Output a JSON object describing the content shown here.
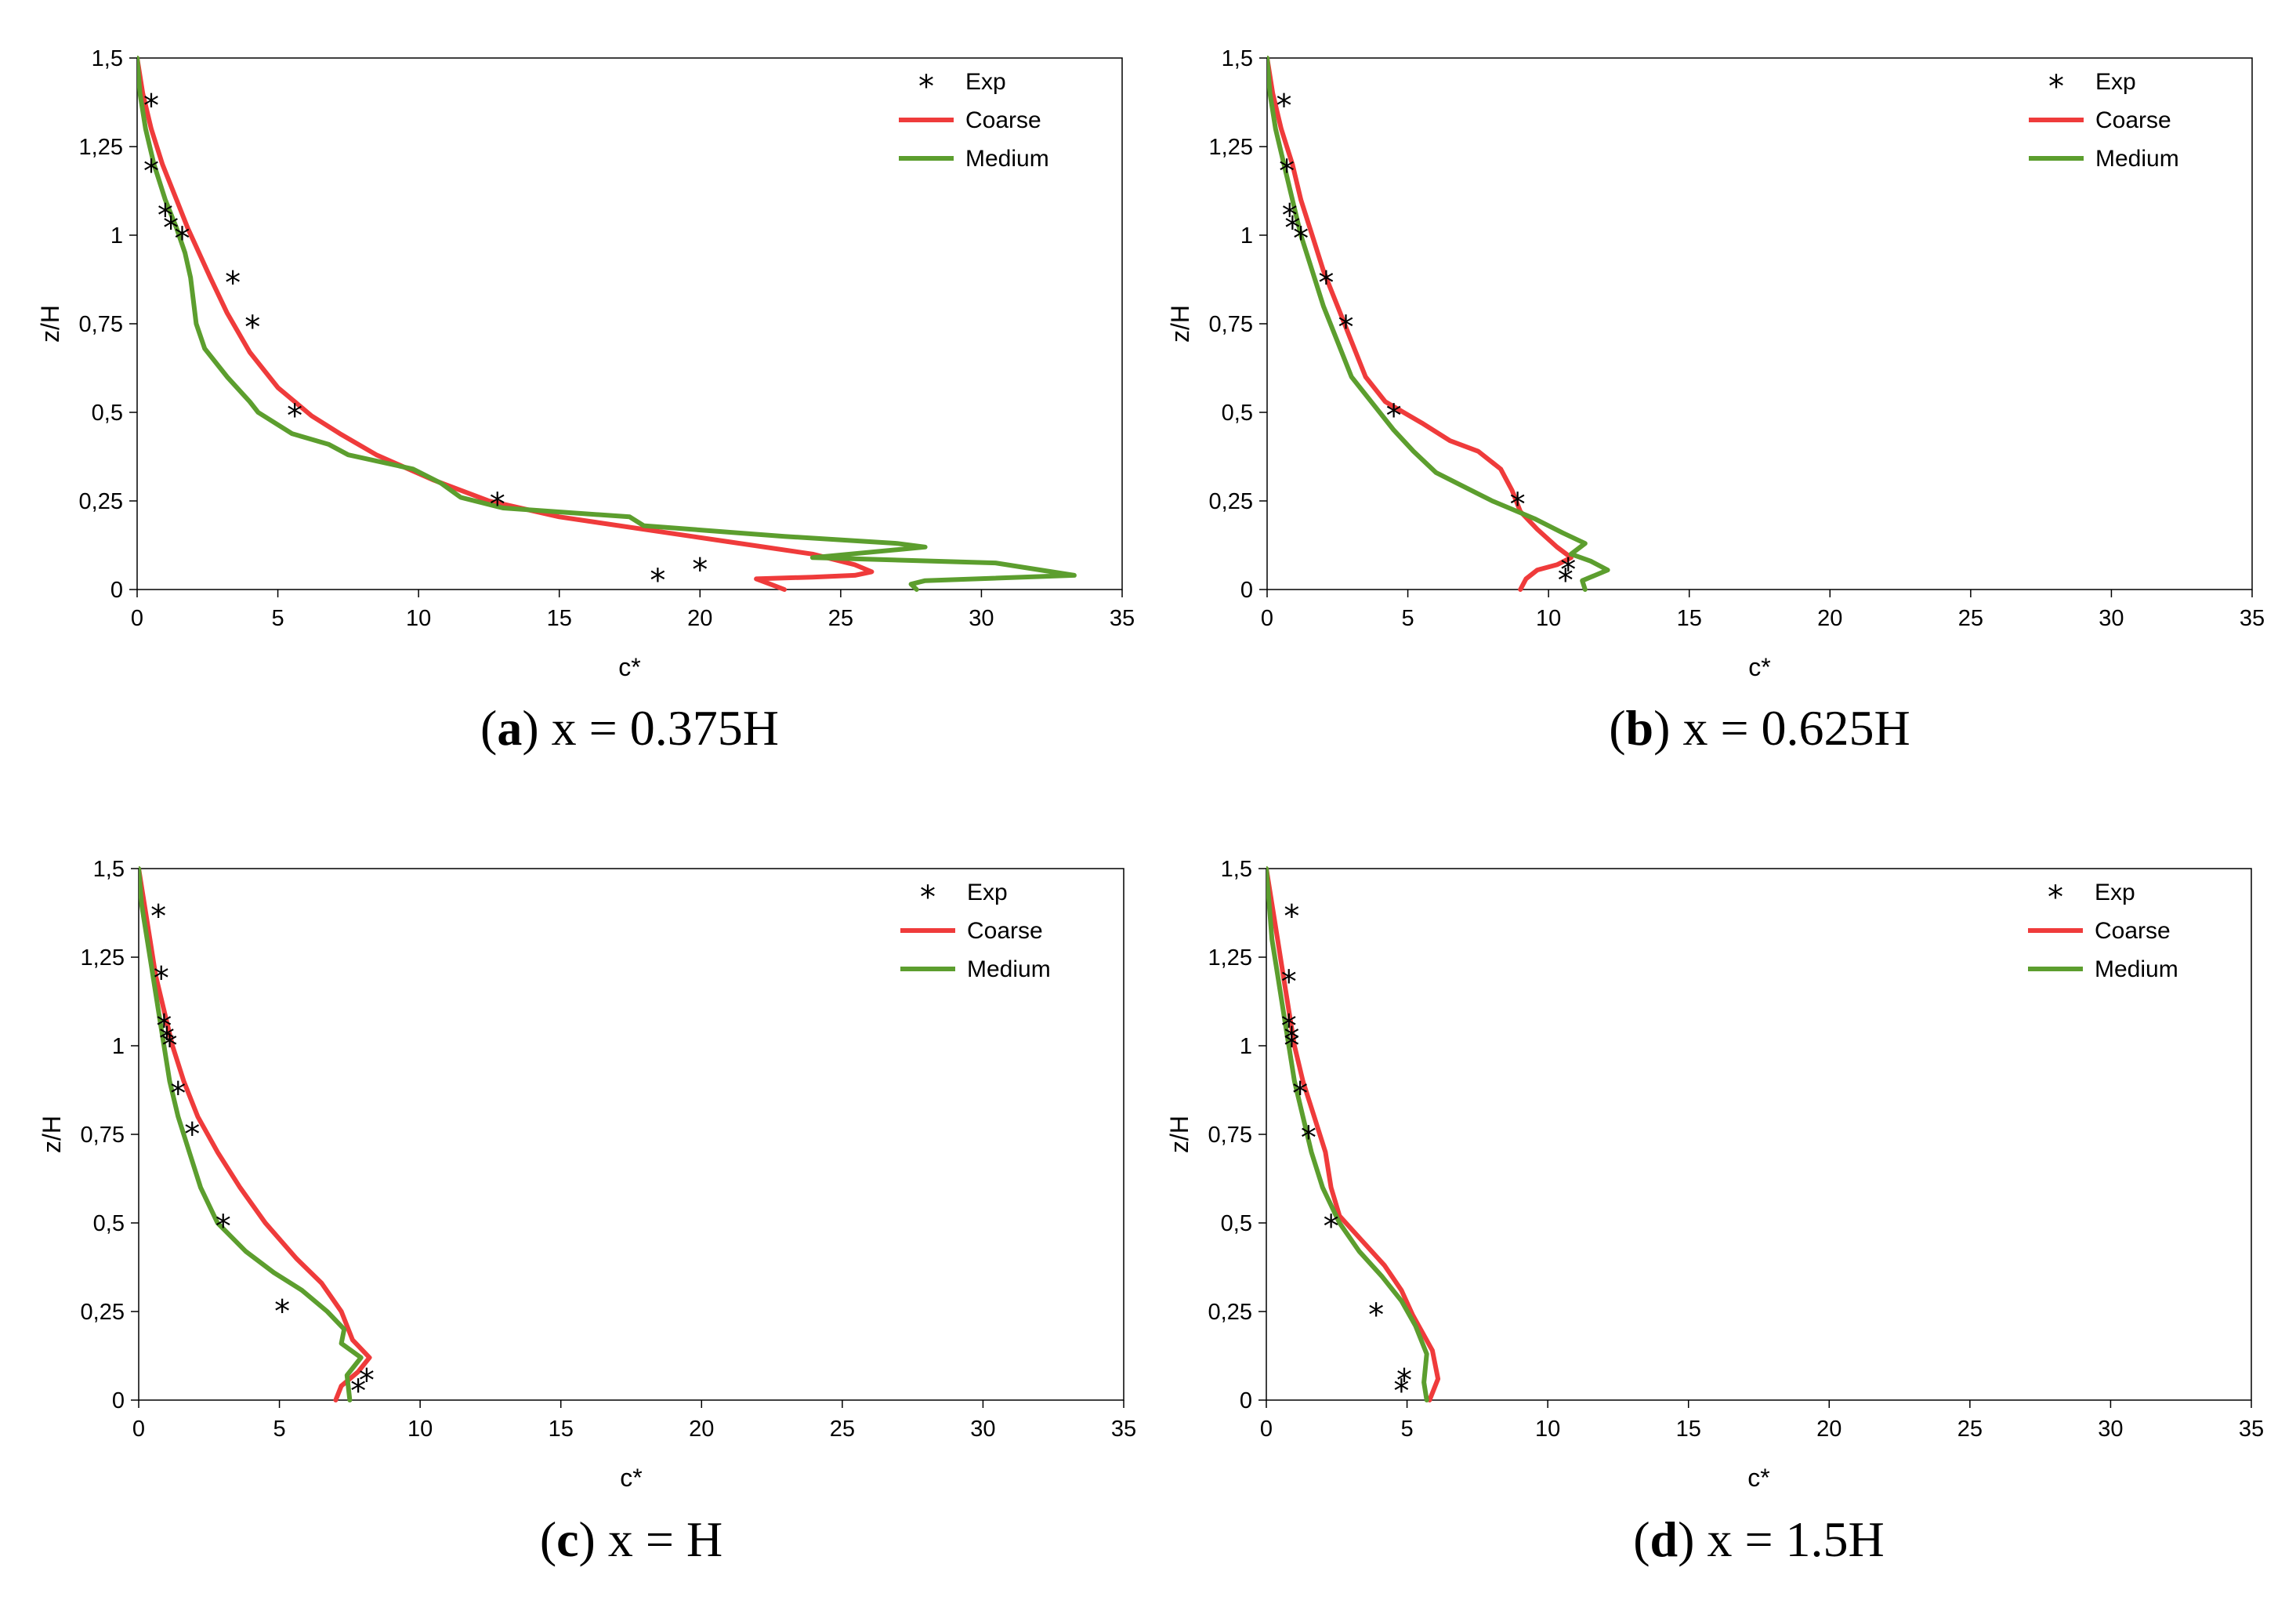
{
  "colors": {
    "Coarse": "#ef3b3b",
    "Medium": "#5c9e2e",
    "Exp": "#000000",
    "axis": "#000000",
    "frame": "#000000"
  },
  "chart_data": [
    {
      "type": "line",
      "caption": {
        "letter": "a",
        "text": "x = 0.375H"
      },
      "xlabel": "c*",
      "ylabel": "z/H",
      "xlim": [
        0,
        35
      ],
      "ylim": [
        0,
        1.5
      ],
      "xticks": [
        "0",
        "5",
        "10",
        "15",
        "20",
        "25",
        "30",
        "35"
      ],
      "yticks": [
        "0",
        "0,25",
        "0,5",
        "0,75",
        "1",
        "1,25",
        "1,5"
      ],
      "legend": {
        "position": "top-right",
        "entries": [
          "Exp",
          "Coarse",
          "Medium"
        ]
      },
      "series": [
        {
          "name": "Exp",
          "kind": "scatter",
          "marker": "*",
          "x": [
            0.5,
            0.5,
            1.0,
            1.2,
            1.6,
            3.4,
            4.1,
            5.6,
            12.8,
            18.5,
            20.0
          ],
          "y": [
            1.375,
            1.19,
            1.065,
            1.03,
            1.0,
            0.875,
            0.75,
            0.5,
            0.25,
            0.035,
            0.065
          ]
        },
        {
          "name": "Coarse",
          "kind": "line",
          "x": [
            0.0,
            0.2,
            0.5,
            0.9,
            1.4,
            1.8,
            2.2,
            2.6,
            3.2,
            4.0,
            5.0,
            6.2,
            7.2,
            8.5,
            10.5,
            12.5,
            15.0,
            18.0,
            21.0,
            24.0,
            25.5,
            26.1,
            25.5,
            24.0,
            22.0,
            22.5,
            23.0
          ],
          "y": [
            1.5,
            1.4,
            1.3,
            1.2,
            1.1,
            1.02,
            0.95,
            0.88,
            0.78,
            0.67,
            0.57,
            0.49,
            0.44,
            0.38,
            0.31,
            0.25,
            0.205,
            0.17,
            0.135,
            0.1,
            0.07,
            0.05,
            0.04,
            0.035,
            0.03,
            0.015,
            0.0
          ]
        },
        {
          "name": "Medium",
          "kind": "line",
          "x": [
            0.0,
            0.1,
            0.3,
            0.6,
            1.0,
            1.4,
            1.7,
            1.9,
            2.1,
            2.4,
            3.2,
            4.0,
            4.3,
            5.5,
            6.8,
            7.5,
            9.8,
            10.8,
            11.5,
            13.0,
            17.5,
            18.0,
            23.0,
            27.0,
            28.0,
            24.0,
            30.5,
            33.3,
            28.0,
            27.5,
            27.7
          ],
          "y": [
            1.5,
            1.4,
            1.3,
            1.2,
            1.1,
            1.02,
            0.95,
            0.88,
            0.75,
            0.68,
            0.6,
            0.53,
            0.5,
            0.44,
            0.41,
            0.38,
            0.34,
            0.3,
            0.26,
            0.23,
            0.205,
            0.18,
            0.15,
            0.13,
            0.12,
            0.09,
            0.075,
            0.04,
            0.025,
            0.015,
            0.0
          ]
        }
      ]
    },
    {
      "type": "line",
      "caption": {
        "letter": "b",
        "text": "x = 0.625H"
      },
      "xlabel": "c*",
      "ylabel": "z/H",
      "xlim": [
        0,
        35
      ],
      "ylim": [
        0,
        1.5
      ],
      "xticks": [
        "0",
        "5",
        "10",
        "15",
        "20",
        "25",
        "30",
        "35"
      ],
      "yticks": [
        "0",
        "0,25",
        "0,5",
        "0,75",
        "1",
        "1,25",
        "1,5"
      ],
      "legend": {
        "position": "top-right",
        "entries": [
          "Exp",
          "Coarse",
          "Medium"
        ]
      },
      "series": [
        {
          "name": "Exp",
          "kind": "scatter",
          "marker": "*",
          "x": [
            0.6,
            0.7,
            0.8,
            0.9,
            1.2,
            2.1,
            2.8,
            4.5,
            8.9,
            10.6,
            10.7
          ],
          "y": [
            1.375,
            1.19,
            1.065,
            1.03,
            1.0,
            0.875,
            0.75,
            0.5,
            0.25,
            0.035,
            0.065
          ]
        },
        {
          "name": "Coarse",
          "kind": "line",
          "x": [
            0.0,
            0.2,
            0.5,
            0.9,
            1.2,
            1.6,
            2.0,
            2.5,
            3.0,
            3.5,
            4.2,
            5.5,
            6.5,
            7.5,
            8.3,
            8.7,
            9.0,
            9.6,
            10.3,
            10.8,
            10.3,
            9.6,
            9.2,
            9.0
          ],
          "y": [
            1.5,
            1.4,
            1.3,
            1.2,
            1.1,
            1.0,
            0.9,
            0.8,
            0.7,
            0.6,
            0.53,
            0.47,
            0.42,
            0.39,
            0.34,
            0.28,
            0.22,
            0.17,
            0.12,
            0.09,
            0.07,
            0.055,
            0.03,
            0.0
          ]
        },
        {
          "name": "Medium",
          "kind": "line",
          "x": [
            0.0,
            0.1,
            0.3,
            0.6,
            0.9,
            1.2,
            1.6,
            2.0,
            2.5,
            3.0,
            3.8,
            4.5,
            5.2,
            6.0,
            7.0,
            8.0,
            9.5,
            10.5,
            11.3,
            10.8,
            11.5,
            12.1,
            11.2,
            11.3
          ],
          "y": [
            1.5,
            1.4,
            1.3,
            1.2,
            1.1,
            1.0,
            0.9,
            0.8,
            0.7,
            0.6,
            0.52,
            0.45,
            0.39,
            0.33,
            0.29,
            0.25,
            0.2,
            0.16,
            0.13,
            0.1,
            0.08,
            0.055,
            0.025,
            0.0
          ]
        }
      ]
    },
    {
      "type": "line",
      "caption": {
        "letter": "c",
        "text": "x = H"
      },
      "xlabel": "c*",
      "ylabel": "z/H",
      "xlim": [
        0,
        35
      ],
      "ylim": [
        0,
        1.5
      ],
      "xticks": [
        "0",
        "5",
        "10",
        "15",
        "20",
        "25",
        "30",
        "35"
      ],
      "yticks": [
        "0",
        "0,25",
        "0,5",
        "0,75",
        "1",
        "1,25",
        "1,5"
      ],
      "legend": {
        "position": "top-right",
        "entries": [
          "Exp",
          "Coarse",
          "Medium"
        ]
      },
      "series": [
        {
          "name": "Exp",
          "kind": "scatter",
          "marker": "*",
          "x": [
            0.7,
            0.8,
            0.9,
            1.0,
            1.1,
            1.4,
            1.9,
            3.0,
            5.1,
            7.8,
            8.1
          ],
          "y": [
            1.375,
            1.2,
            1.065,
            1.03,
            1.01,
            0.875,
            0.76,
            0.5,
            0.26,
            0.035,
            0.065
          ]
        },
        {
          "name": "Coarse",
          "kind": "line",
          "x": [
            0.0,
            0.2,
            0.4,
            0.6,
            0.9,
            1.2,
            1.6,
            2.1,
            2.8,
            3.6,
            4.5,
            5.6,
            6.5,
            7.2,
            7.6,
            8.2,
            7.8,
            7.2,
            7.0
          ],
          "y": [
            1.5,
            1.4,
            1.3,
            1.2,
            1.1,
            1.0,
            0.9,
            0.8,
            0.7,
            0.6,
            0.5,
            0.4,
            0.33,
            0.25,
            0.17,
            0.12,
            0.08,
            0.04,
            0.0
          ]
        },
        {
          "name": "Medium",
          "kind": "line",
          "x": [
            0.0,
            0.1,
            0.3,
            0.5,
            0.7,
            0.9,
            1.1,
            1.4,
            1.8,
            2.2,
            2.8,
            3.8,
            4.8,
            5.8,
            6.7,
            7.3,
            7.2,
            7.9,
            7.4,
            7.5
          ],
          "y": [
            1.5,
            1.4,
            1.3,
            1.2,
            1.1,
            1.0,
            0.9,
            0.8,
            0.7,
            0.6,
            0.5,
            0.42,
            0.36,
            0.31,
            0.25,
            0.2,
            0.16,
            0.12,
            0.07,
            0.0
          ]
        }
      ]
    },
    {
      "type": "line",
      "caption": {
        "letter": "d",
        "text": "x = 1.5H"
      },
      "xlabel": "c*",
      "ylabel": "z/H",
      "xlim": [
        0,
        35
      ],
      "ylim": [
        0,
        1.5
      ],
      "xticks": [
        "0",
        "5",
        "10",
        "15",
        "20",
        "25",
        "30",
        "35"
      ],
      "yticks": [
        "0",
        "0,25",
        "0,5",
        "0,75",
        "1",
        "1,25",
        "1,5"
      ],
      "legend": {
        "position": "top-right",
        "entries": [
          "Exp",
          "Coarse",
          "Medium"
        ]
      },
      "series": [
        {
          "name": "Exp",
          "kind": "scatter",
          "marker": "*",
          "x": [
            0.9,
            0.8,
            0.8,
            0.9,
            0.9,
            1.2,
            1.5,
            2.3,
            3.9,
            4.8,
            4.9
          ],
          "y": [
            1.375,
            1.19,
            1.065,
            1.03,
            1.01,
            0.875,
            0.75,
            0.5,
            0.25,
            0.035,
            0.065
          ]
        },
        {
          "name": "Coarse",
          "kind": "line",
          "x": [
            0.0,
            0.2,
            0.4,
            0.6,
            0.8,
            1.0,
            1.3,
            1.7,
            2.1,
            2.3,
            2.6,
            3.4,
            4.2,
            4.8,
            5.2,
            5.9,
            6.1,
            5.9,
            5.8
          ],
          "y": [
            1.5,
            1.4,
            1.3,
            1.2,
            1.1,
            1.0,
            0.9,
            0.8,
            0.7,
            0.6,
            0.52,
            0.45,
            0.38,
            0.31,
            0.24,
            0.14,
            0.06,
            0.02,
            0.0
          ]
        },
        {
          "name": "Medium",
          "kind": "line",
          "x": [
            0.0,
            0.1,
            0.2,
            0.4,
            0.6,
            0.8,
            1.0,
            1.3,
            1.6,
            2.0,
            2.6,
            3.3,
            4.1,
            4.8,
            5.3,
            5.7,
            5.6,
            5.7
          ],
          "y": [
            1.5,
            1.4,
            1.3,
            1.2,
            1.1,
            1.0,
            0.9,
            0.8,
            0.7,
            0.6,
            0.5,
            0.42,
            0.35,
            0.28,
            0.21,
            0.13,
            0.05,
            0.0
          ]
        }
      ]
    }
  ]
}
